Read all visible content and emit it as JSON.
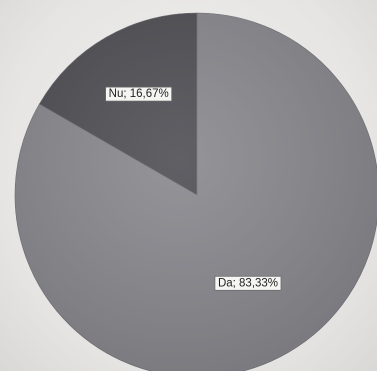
{
  "chart_data": {
    "type": "pie",
    "categories": [
      "Nu",
      "Da"
    ],
    "values": [
      16.67,
      83.33
    ],
    "data_labels": [
      "Nu; 16,67%",
      "Da; 83,33%"
    ],
    "colors": [
      "#4e4e54",
      "#88888e"
    ],
    "title": "",
    "legend": "none"
  }
}
